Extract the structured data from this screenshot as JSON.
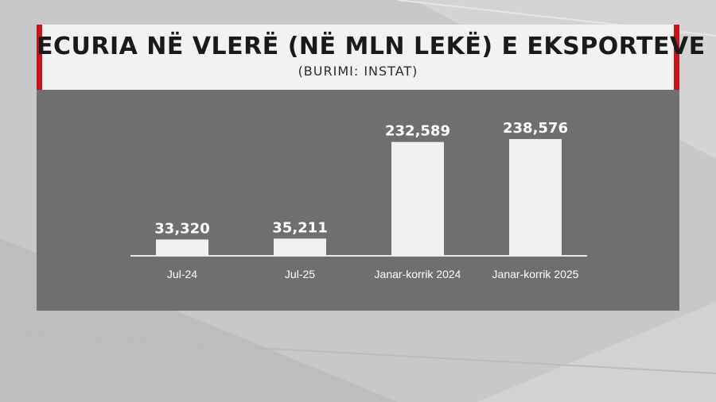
{
  "header": {
    "title": "ECURIA NË VLERË (NË MLN LEKË) E EKSPORTEVE",
    "subtitle": "(BURIMI: INSTAT)"
  },
  "colors": {
    "accent": "#c5141b",
    "bar": "#f0f0f0",
    "panel": "#6f6f6f",
    "label": "#ffffff"
  },
  "chart_data": {
    "type": "bar",
    "title": "ECURIA NË VLERË (NË MLN LEKË) E EKSPORTEVE",
    "subtitle": "(BURIMI: INSTAT)",
    "categories": [
      "Jul-24",
      "Jul-25",
      "Janar-korrik 2024",
      "Janar-korrik 2025"
    ],
    "values": [
      33320,
      35211,
      232589,
      238576
    ],
    "value_labels": [
      "33,320",
      "35,211",
      "232,589",
      "238,576"
    ],
    "xlabel": "",
    "ylabel": "",
    "ylim": [
      0,
      250000
    ],
    "grid": false,
    "legend": "none"
  }
}
